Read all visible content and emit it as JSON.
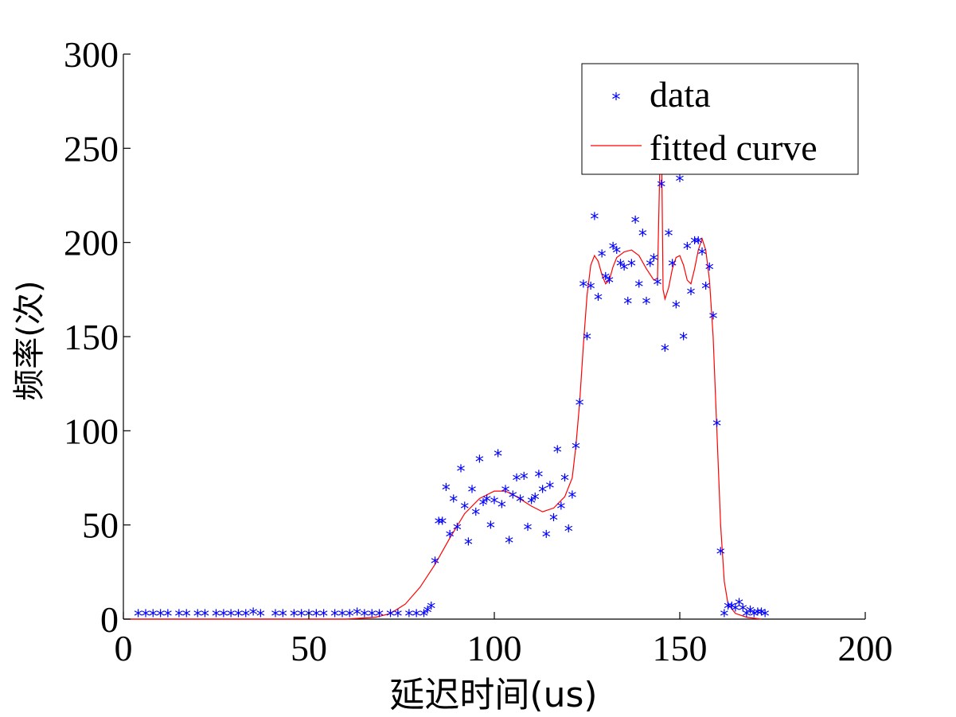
{
  "chart_data": {
    "type": "scatter",
    "xlabel": "延迟时间(us)",
    "ylabel": "频率(次)",
    "xlim": [
      0,
      200
    ],
    "ylim": [
      0,
      300
    ],
    "xticks": [
      "0",
      "50",
      "100",
      "150",
      "200"
    ],
    "yticks": [
      "0",
      "50",
      "100",
      "150",
      "200",
      "250",
      "300"
    ],
    "grid": false,
    "legend": {
      "position": "top-right",
      "entries": [
        {
          "label": "data",
          "marker": "*",
          "color": "#0000ff"
        },
        {
          "label": "fitted curve",
          "line": "solid",
          "color": "#ff0000"
        }
      ]
    },
    "series": [
      {
        "name": "data",
        "kind": "scatter",
        "color": "#0000ff",
        "points": [
          [
            4,
            1
          ],
          [
            6,
            1
          ],
          [
            8,
            1
          ],
          [
            10,
            1
          ],
          [
            12,
            1
          ],
          [
            15,
            1
          ],
          [
            17,
            1
          ],
          [
            20,
            1
          ],
          [
            22,
            1
          ],
          [
            25,
            1
          ],
          [
            27,
            1
          ],
          [
            29,
            1
          ],
          [
            31,
            1
          ],
          [
            33,
            1
          ],
          [
            35,
            2
          ],
          [
            37,
            1
          ],
          [
            41,
            1
          ],
          [
            43,
            1
          ],
          [
            46,
            1
          ],
          [
            48,
            1
          ],
          [
            50,
            1
          ],
          [
            52,
            1
          ],
          [
            54,
            1
          ],
          [
            57,
            1
          ],
          [
            59,
            1
          ],
          [
            61,
            1
          ],
          [
            63,
            2
          ],
          [
            65,
            1
          ],
          [
            67,
            1
          ],
          [
            69,
            1
          ],
          [
            72,
            1
          ],
          [
            74,
            1
          ],
          [
            77,
            1
          ],
          [
            79,
            1
          ],
          [
            81,
            1
          ],
          [
            82,
            3
          ],
          [
            83,
            5
          ],
          [
            84,
            29
          ],
          [
            85,
            50
          ],
          [
            86,
            50
          ],
          [
            87,
            68
          ],
          [
            88,
            43
          ],
          [
            89,
            62
          ],
          [
            90,
            47
          ],
          [
            91,
            78
          ],
          [
            92,
            58
          ],
          [
            93,
            39
          ],
          [
            94,
            67
          ],
          [
            95,
            55
          ],
          [
            96,
            83
          ],
          [
            97,
            60
          ],
          [
            98,
            62
          ],
          [
            99,
            48
          ],
          [
            100,
            61
          ],
          [
            101,
            86
          ],
          [
            102,
            59
          ],
          [
            103,
            67
          ],
          [
            104,
            40
          ],
          [
            105,
            64
          ],
          [
            106,
            73
          ],
          [
            107,
            62
          ],
          [
            108,
            74
          ],
          [
            109,
            47
          ],
          [
            110,
            61
          ],
          [
            111,
            63
          ],
          [
            112,
            75
          ],
          [
            113,
            67
          ],
          [
            114,
            43
          ],
          [
            115,
            69
          ],
          [
            116,
            52
          ],
          [
            117,
            88
          ],
          [
            118,
            58
          ],
          [
            119,
            73
          ],
          [
            120,
            46
          ],
          [
            121,
            64
          ],
          [
            122,
            90
          ],
          [
            123,
            113
          ],
          [
            124,
            176
          ],
          [
            125,
            148
          ],
          [
            126,
            175
          ],
          [
            127,
            212
          ],
          [
            128,
            169
          ],
          [
            129,
            192
          ],
          [
            130,
            180
          ],
          [
            131,
            178
          ],
          [
            132,
            196
          ],
          [
            133,
            194
          ],
          [
            134,
            187
          ],
          [
            135,
            185
          ],
          [
            136,
            167
          ],
          [
            137,
            187
          ],
          [
            138,
            210
          ],
          [
            139,
            176
          ],
          [
            140,
            203
          ],
          [
            141,
            167
          ],
          [
            142,
            187
          ],
          [
            143,
            190
          ],
          [
            144,
            177
          ],
          [
            145,
            229
          ],
          [
            146,
            142
          ],
          [
            147,
            203
          ],
          [
            148,
            187
          ],
          [
            149,
            165
          ],
          [
            150,
            232
          ],
          [
            151,
            148
          ],
          [
            152,
            196
          ],
          [
            153,
            172
          ],
          [
            154,
            199
          ],
          [
            155,
            199
          ],
          [
            156,
            193
          ],
          [
            157,
            175
          ],
          [
            158,
            185
          ],
          [
            159,
            159
          ],
          [
            160,
            102
          ],
          [
            161,
            34
          ],
          [
            162,
            1
          ],
          [
            163,
            5
          ],
          [
            164,
            5
          ],
          [
            165,
            4
          ],
          [
            166,
            7
          ],
          [
            167,
            4
          ],
          [
            168,
            1
          ],
          [
            169,
            3
          ],
          [
            170,
            1
          ],
          [
            171,
            2
          ],
          [
            172,
            2
          ],
          [
            173,
            1
          ]
        ]
      },
      {
        "name": "fitted curve",
        "kind": "line",
        "color": "#ff0000",
        "points": [
          [
            0,
            0
          ],
          [
            60,
            0
          ],
          [
            68,
            1
          ],
          [
            72,
            3
          ],
          [
            76,
            8
          ],
          [
            80,
            17
          ],
          [
            84,
            29
          ],
          [
            88,
            43
          ],
          [
            92,
            56
          ],
          [
            96,
            64
          ],
          [
            100,
            68
          ],
          [
            103,
            68
          ],
          [
            106,
            65
          ],
          [
            110,
            60
          ],
          [
            113,
            57
          ],
          [
            116,
            59
          ],
          [
            119,
            65
          ],
          [
            121,
            75
          ],
          [
            122,
            92
          ],
          [
            123,
            115
          ],
          [
            124,
            145
          ],
          [
            125,
            172
          ],
          [
            126,
            188
          ],
          [
            127,
            193
          ],
          [
            128,
            190
          ],
          [
            129,
            183
          ],
          [
            130,
            178
          ],
          [
            131,
            180
          ],
          [
            132,
            187
          ],
          [
            133,
            192
          ],
          [
            135,
            195
          ],
          [
            137,
            196
          ],
          [
            139,
            193
          ],
          [
            141,
            186
          ],
          [
            143,
            180
          ],
          [
            144,
            181
          ],
          [
            144.5,
            230
          ],
          [
            145,
            270
          ],
          [
            145.5,
            175
          ],
          [
            146,
            170
          ],
          [
            147,
            176
          ],
          [
            148,
            186
          ],
          [
            149,
            192
          ],
          [
            150,
            193
          ],
          [
            151,
            188
          ],
          [
            152,
            180
          ],
          [
            153,
            178
          ],
          [
            154,
            186
          ],
          [
            155,
            196
          ],
          [
            156,
            202
          ],
          [
            157,
            196
          ],
          [
            158,
            180
          ],
          [
            159,
            150
          ],
          [
            160,
            100
          ],
          [
            161,
            50
          ],
          [
            162,
            20
          ],
          [
            163,
            8
          ],
          [
            165,
            3
          ],
          [
            168,
            1
          ],
          [
            172,
            0
          ]
        ]
      }
    ]
  }
}
